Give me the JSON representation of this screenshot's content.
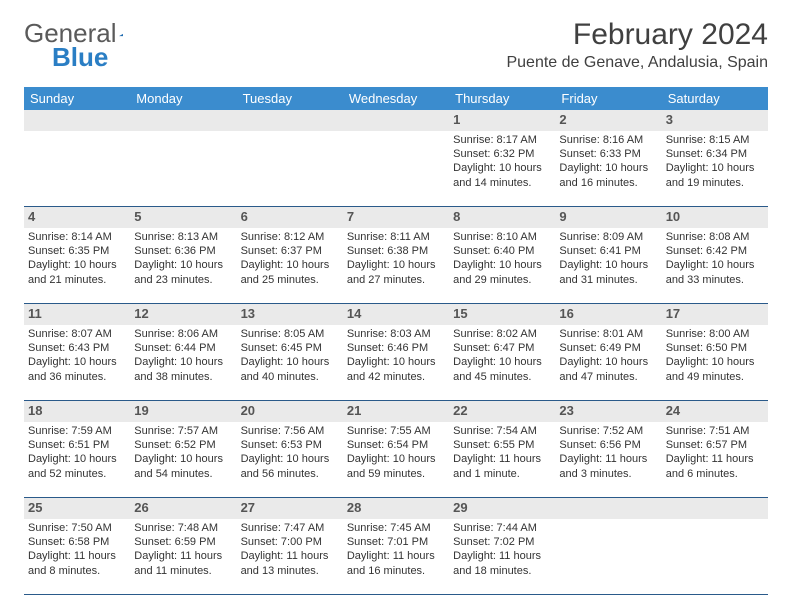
{
  "logo": {
    "word1": "General",
    "word2": "Blue"
  },
  "title": "February 2024",
  "location": "Puente de Genave, Andalusia, Spain",
  "colors": {
    "header_bg": "#3b8cce",
    "header_text": "#ffffff",
    "band_bg": "#eaeaea",
    "divider": "#2a5a8a",
    "text": "#333333",
    "title_text": "#404040"
  },
  "day_headers": [
    "Sunday",
    "Monday",
    "Tuesday",
    "Wednesday",
    "Thursday",
    "Friday",
    "Saturday"
  ],
  "weeks": [
    [
      {
        "blank": true
      },
      {
        "blank": true
      },
      {
        "blank": true
      },
      {
        "blank": true
      },
      {
        "day": 1,
        "sunrise": "8:17 AM",
        "sunset": "6:32 PM",
        "daylight": "10 hours and 14 minutes."
      },
      {
        "day": 2,
        "sunrise": "8:16 AM",
        "sunset": "6:33 PM",
        "daylight": "10 hours and 16 minutes."
      },
      {
        "day": 3,
        "sunrise": "8:15 AM",
        "sunset": "6:34 PM",
        "daylight": "10 hours and 19 minutes."
      }
    ],
    [
      {
        "day": 4,
        "sunrise": "8:14 AM",
        "sunset": "6:35 PM",
        "daylight": "10 hours and 21 minutes."
      },
      {
        "day": 5,
        "sunrise": "8:13 AM",
        "sunset": "6:36 PM",
        "daylight": "10 hours and 23 minutes."
      },
      {
        "day": 6,
        "sunrise": "8:12 AM",
        "sunset": "6:37 PM",
        "daylight": "10 hours and 25 minutes."
      },
      {
        "day": 7,
        "sunrise": "8:11 AM",
        "sunset": "6:38 PM",
        "daylight": "10 hours and 27 minutes."
      },
      {
        "day": 8,
        "sunrise": "8:10 AM",
        "sunset": "6:40 PM",
        "daylight": "10 hours and 29 minutes."
      },
      {
        "day": 9,
        "sunrise": "8:09 AM",
        "sunset": "6:41 PM",
        "daylight": "10 hours and 31 minutes."
      },
      {
        "day": 10,
        "sunrise": "8:08 AM",
        "sunset": "6:42 PM",
        "daylight": "10 hours and 33 minutes."
      }
    ],
    [
      {
        "day": 11,
        "sunrise": "8:07 AM",
        "sunset": "6:43 PM",
        "daylight": "10 hours and 36 minutes."
      },
      {
        "day": 12,
        "sunrise": "8:06 AM",
        "sunset": "6:44 PM",
        "daylight": "10 hours and 38 minutes."
      },
      {
        "day": 13,
        "sunrise": "8:05 AM",
        "sunset": "6:45 PM",
        "daylight": "10 hours and 40 minutes."
      },
      {
        "day": 14,
        "sunrise": "8:03 AM",
        "sunset": "6:46 PM",
        "daylight": "10 hours and 42 minutes."
      },
      {
        "day": 15,
        "sunrise": "8:02 AM",
        "sunset": "6:47 PM",
        "daylight": "10 hours and 45 minutes."
      },
      {
        "day": 16,
        "sunrise": "8:01 AM",
        "sunset": "6:49 PM",
        "daylight": "10 hours and 47 minutes."
      },
      {
        "day": 17,
        "sunrise": "8:00 AM",
        "sunset": "6:50 PM",
        "daylight": "10 hours and 49 minutes."
      }
    ],
    [
      {
        "day": 18,
        "sunrise": "7:59 AM",
        "sunset": "6:51 PM",
        "daylight": "10 hours and 52 minutes."
      },
      {
        "day": 19,
        "sunrise": "7:57 AM",
        "sunset": "6:52 PM",
        "daylight": "10 hours and 54 minutes."
      },
      {
        "day": 20,
        "sunrise": "7:56 AM",
        "sunset": "6:53 PM",
        "daylight": "10 hours and 56 minutes."
      },
      {
        "day": 21,
        "sunrise": "7:55 AM",
        "sunset": "6:54 PM",
        "daylight": "10 hours and 59 minutes."
      },
      {
        "day": 22,
        "sunrise": "7:54 AM",
        "sunset": "6:55 PM",
        "daylight": "11 hours and 1 minute."
      },
      {
        "day": 23,
        "sunrise": "7:52 AM",
        "sunset": "6:56 PM",
        "daylight": "11 hours and 3 minutes."
      },
      {
        "day": 24,
        "sunrise": "7:51 AM",
        "sunset": "6:57 PM",
        "daylight": "11 hours and 6 minutes."
      }
    ],
    [
      {
        "day": 25,
        "sunrise": "7:50 AM",
        "sunset": "6:58 PM",
        "daylight": "11 hours and 8 minutes."
      },
      {
        "day": 26,
        "sunrise": "7:48 AM",
        "sunset": "6:59 PM",
        "daylight": "11 hours and 11 minutes."
      },
      {
        "day": 27,
        "sunrise": "7:47 AM",
        "sunset": "7:00 PM",
        "daylight": "11 hours and 13 minutes."
      },
      {
        "day": 28,
        "sunrise": "7:45 AM",
        "sunset": "7:01 PM",
        "daylight": "11 hours and 16 minutes."
      },
      {
        "day": 29,
        "sunrise": "7:44 AM",
        "sunset": "7:02 PM",
        "daylight": "11 hours and 18 minutes."
      },
      {
        "blank": true
      },
      {
        "blank": true
      }
    ]
  ],
  "labels": {
    "sunrise": "Sunrise:",
    "sunset": "Sunset:",
    "daylight": "Daylight:"
  }
}
